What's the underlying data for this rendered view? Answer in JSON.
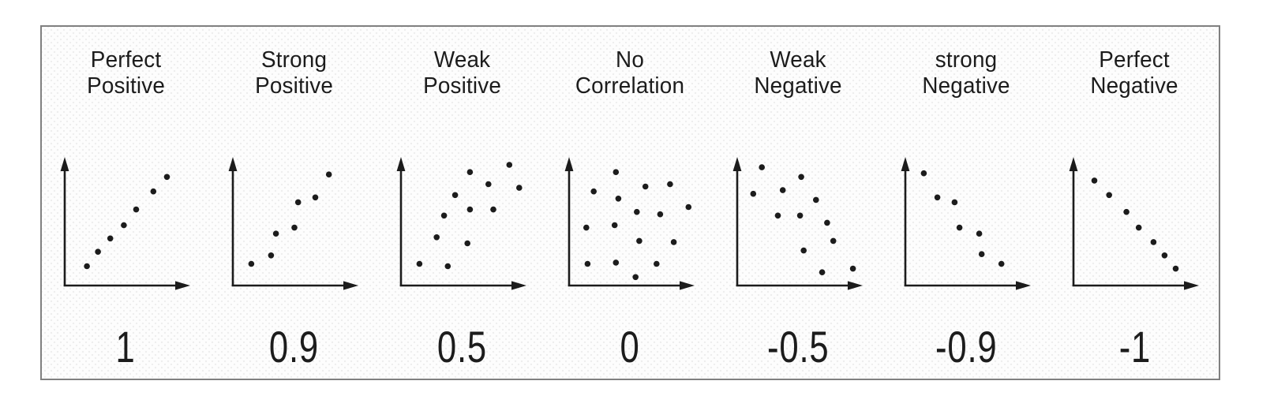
{
  "style": {
    "ink_color": "#1c1c1c",
    "frame_border_color": "#808080",
    "frame_background_color": "#fdfdfd",
    "page_background_color": "#ffffff"
  },
  "chart_data": {
    "type": "scatter",
    "layout": {
      "grid": false,
      "axis_ticks": false,
      "axis_titles": false,
      "arrow_axes": true,
      "x_range": [
        0,
        1
      ],
      "y_range": [
        0,
        1
      ],
      "panel_count": 7
    },
    "panels": [
      {
        "label": "Perfect Positive",
        "label_lines": [
          "Perfect",
          "Positive"
        ],
        "coefficient": "1",
        "points": [
          [
            0.18,
            0.16
          ],
          [
            0.27,
            0.28
          ],
          [
            0.37,
            0.39
          ],
          [
            0.48,
            0.5
          ],
          [
            0.58,
            0.63
          ],
          [
            0.72,
            0.78
          ],
          [
            0.83,
            0.9
          ]
        ]
      },
      {
        "label": "Strong Positive",
        "label_lines": [
          "Strong",
          "Positive"
        ],
        "coefficient": "0.9",
        "points": [
          [
            0.15,
            0.18
          ],
          [
            0.31,
            0.25
          ],
          [
            0.35,
            0.43
          ],
          [
            0.5,
            0.48
          ],
          [
            0.53,
            0.69
          ],
          [
            0.67,
            0.73
          ],
          [
            0.78,
            0.92
          ]
        ]
      },
      {
        "label": "Weak Positive",
        "label_lines": [
          "Weak",
          "Positive"
        ],
        "coefficient": "0.5",
        "points": [
          [
            0.15,
            0.18
          ],
          [
            0.38,
            0.16
          ],
          [
            0.29,
            0.4
          ],
          [
            0.54,
            0.35
          ],
          [
            0.35,
            0.58
          ],
          [
            0.56,
            0.63
          ],
          [
            0.75,
            0.63
          ],
          [
            0.44,
            0.75
          ],
          [
            0.71,
            0.84
          ],
          [
            0.96,
            0.81
          ],
          [
            0.56,
            0.94
          ],
          [
            0.88,
            1.0
          ]
        ]
      },
      {
        "label": "No Correlation",
        "label_lines": [
          "No",
          "Correlation"
        ],
        "coefficient": "0",
        "points": [
          [
            0.38,
            0.94
          ],
          [
            0.2,
            0.78
          ],
          [
            0.62,
            0.82
          ],
          [
            0.82,
            0.84
          ],
          [
            0.4,
            0.72
          ],
          [
            0.97,
            0.65
          ],
          [
            0.55,
            0.61
          ],
          [
            0.74,
            0.59
          ],
          [
            0.14,
            0.48
          ],
          [
            0.37,
            0.5
          ],
          [
            0.57,
            0.37
          ],
          [
            0.85,
            0.36
          ],
          [
            0.15,
            0.18
          ],
          [
            0.38,
            0.19
          ],
          [
            0.71,
            0.18
          ],
          [
            0.54,
            0.07
          ]
        ]
      },
      {
        "label": "Weak Negative",
        "label_lines": [
          "Weak",
          "Negative"
        ],
        "coefficient": "-0.5",
        "points": [
          [
            0.2,
            0.98
          ],
          [
            0.52,
            0.9
          ],
          [
            0.13,
            0.76
          ],
          [
            0.37,
            0.79
          ],
          [
            0.64,
            0.71
          ],
          [
            0.33,
            0.58
          ],
          [
            0.51,
            0.58
          ],
          [
            0.73,
            0.52
          ],
          [
            0.78,
            0.37
          ],
          [
            0.54,
            0.29
          ],
          [
            0.69,
            0.11
          ],
          [
            0.94,
            0.14
          ]
        ]
      },
      {
        "label": "strong Negative",
        "label_lines": [
          "strong",
          "Negative"
        ],
        "coefficient": "-0.9",
        "points": [
          [
            0.15,
            0.93
          ],
          [
            0.26,
            0.73
          ],
          [
            0.4,
            0.69
          ],
          [
            0.44,
            0.48
          ],
          [
            0.6,
            0.43
          ],
          [
            0.62,
            0.26
          ],
          [
            0.78,
            0.18
          ]
        ]
      },
      {
        "label": "Perfect Negative",
        "label_lines": [
          "Perfect",
          "Negative"
        ],
        "coefficient": "-1",
        "points": [
          [
            0.17,
            0.87
          ],
          [
            0.29,
            0.75
          ],
          [
            0.43,
            0.61
          ],
          [
            0.53,
            0.48
          ],
          [
            0.65,
            0.36
          ],
          [
            0.74,
            0.25
          ],
          [
            0.83,
            0.14
          ]
        ]
      }
    ]
  }
}
